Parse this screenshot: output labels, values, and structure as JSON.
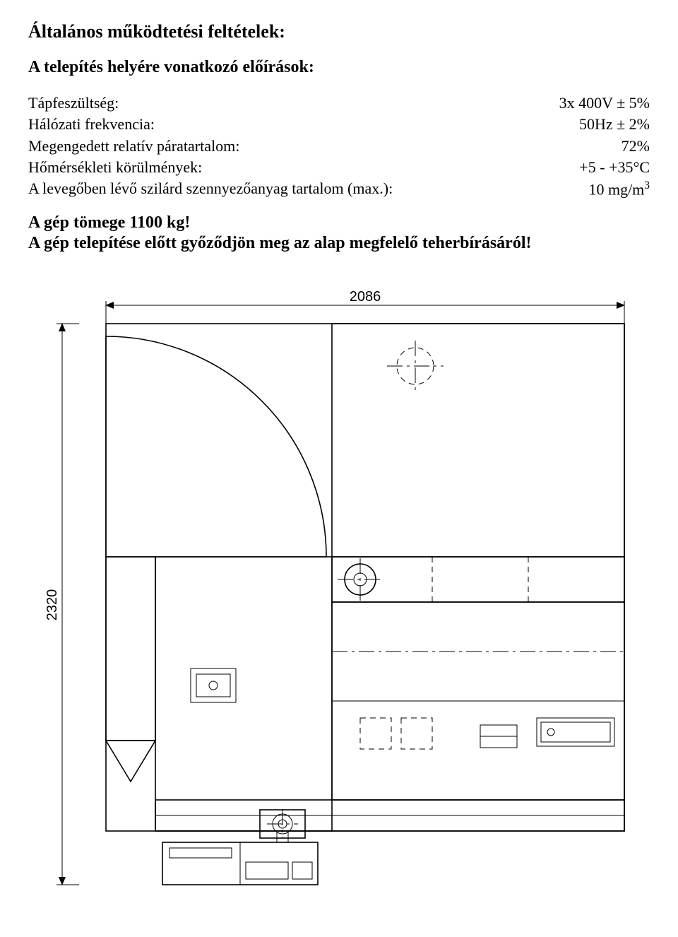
{
  "title": "Általános működtetési feltételek:",
  "subtitle": "A telepítés helyére vonatkozó előírások:",
  "specs": {
    "voltage_label": "Tápfeszültség:",
    "voltage_value": "3x 400V ± 5%",
    "frequency_label": "Hálózati frekvencia:",
    "frequency_value": "50Hz ± 2%",
    "humidity_label": "Megengedett relatív páratartalom:",
    "humidity_value": "72%",
    "temp_label": "Hőmérsékleti körülmények:",
    "temp_value": "+5 - +35°C",
    "particulate_label": "A levegőben lévő szilárd szennyezőanyag tartalom (max.):",
    "particulate_value_base": "10 mg/m",
    "particulate_value_exp": "3"
  },
  "weight_line": "A gép tömege 1100 kg!",
  "warning_line": "A gép telepítése előtt győződjön meg az alap megfelelő teherbírásáról!",
  "drawing": {
    "width_label": "2086",
    "height_label": "2320",
    "stroke": "#000000",
    "thin": 1,
    "med": 1.6,
    "thick": 2.2,
    "dash_center": "22 6 4 6",
    "dash_hidden": "8 6",
    "font_family": "Arial, Helvetica, sans-serif",
    "dim_font_size": 20
  }
}
